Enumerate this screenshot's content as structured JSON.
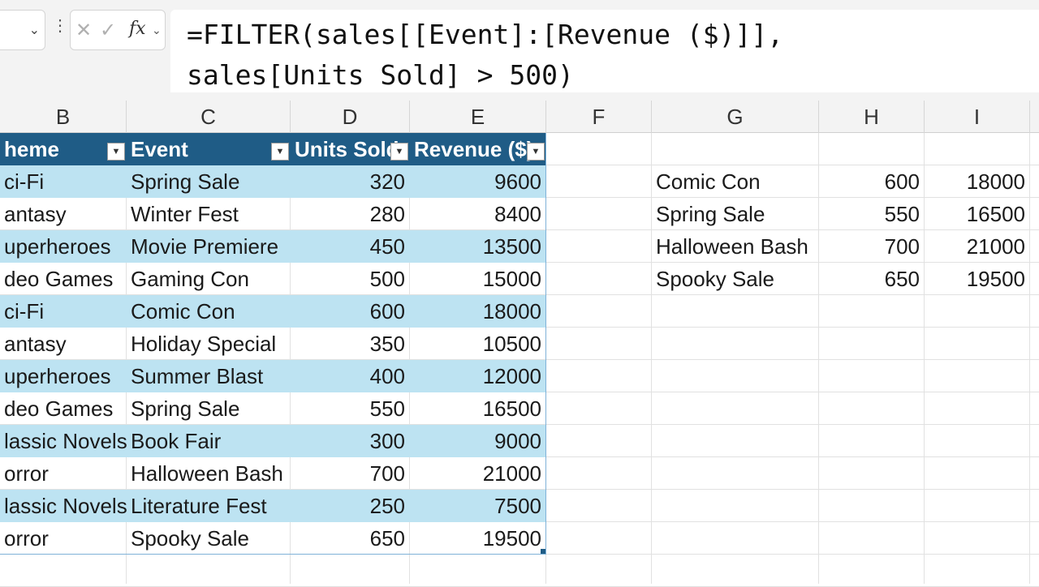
{
  "formula_bar": {
    "namebox_value": "",
    "fx_label": "fx",
    "formula": "=FILTER(sales[[Event]:[Revenue ($)]],\nsales[Units Sold] > 500)"
  },
  "columns": [
    "B",
    "C",
    "D",
    "E",
    "F",
    "G",
    "H",
    "I"
  ],
  "table": {
    "headers": [
      "heme",
      "Event",
      "Units Sold",
      "Revenue ($)"
    ],
    "rows": [
      [
        "ci-Fi",
        "Spring Sale",
        "320",
        "9600"
      ],
      [
        "antasy",
        "Winter Fest",
        "280",
        "8400"
      ],
      [
        "uperheroes",
        "Movie Premiere",
        "450",
        "13500"
      ],
      [
        "deo Games",
        "Gaming Con",
        "500",
        "15000"
      ],
      [
        "ci-Fi",
        "Comic Con",
        "600",
        "18000"
      ],
      [
        "antasy",
        "Holiday Special",
        "350",
        "10500"
      ],
      [
        "uperheroes",
        "Summer Blast",
        "400",
        "12000"
      ],
      [
        "deo Games",
        "Spring Sale",
        "550",
        "16500"
      ],
      [
        "lassic Novels",
        "Book Fair",
        "300",
        "9000"
      ],
      [
        "orror",
        "Halloween Bash",
        "700",
        "21000"
      ],
      [
        "lassic Novels",
        "Literature Fest",
        "250",
        "7500"
      ],
      [
        "orror",
        "Spooky Sale",
        "650",
        "19500"
      ]
    ]
  },
  "filter_result": {
    "rows": [
      [
        "Comic Con",
        "600",
        "18000"
      ],
      [
        "Spring Sale",
        "550",
        "16500"
      ],
      [
        "Halloween Bash",
        "700",
        "21000"
      ],
      [
        "Spooky Sale",
        "650",
        "19500"
      ]
    ]
  },
  "colors": {
    "table_header": "#1f5c86",
    "band": "#bde3f2"
  }
}
